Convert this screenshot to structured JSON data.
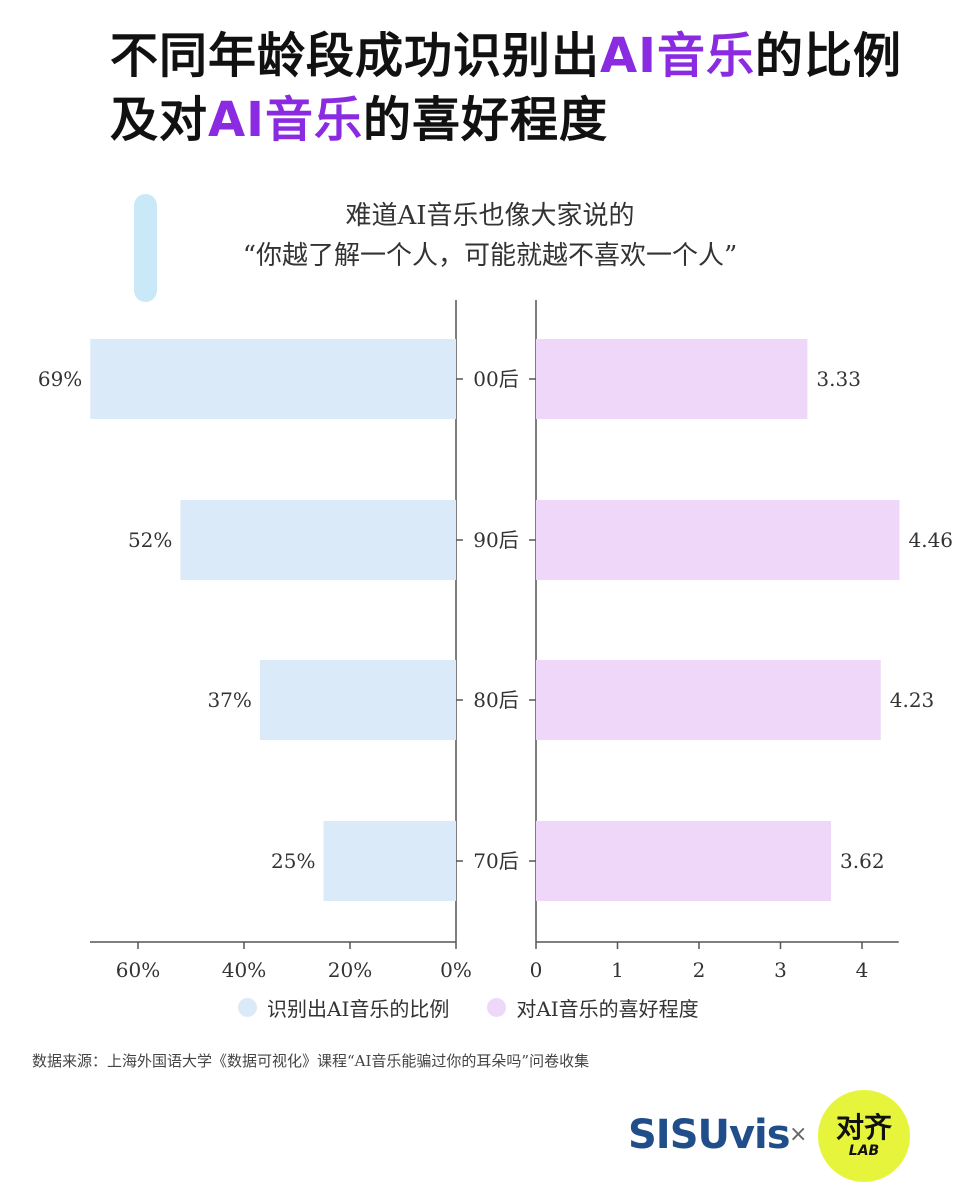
{
  "title": {
    "line1_pre": "不同年龄段成功识别出",
    "line1_hl": "AI音乐",
    "line1_post": "的比例",
    "line2_pre": "及对",
    "line2_hl": "AI音乐",
    "line2_post": "的喜好程度"
  },
  "subtitle": {
    "line1": "难道AI音乐也像大家说的",
    "line2": "“你越了解一个人，可能就越不喜欢一个人”"
  },
  "colors": {
    "left_bar": "#dbeaf9",
    "right_bar": "#efd7f9",
    "highlight": "#8a2be2"
  },
  "chart_data": {
    "type": "bar",
    "categories": [
      "00后",
      "90后",
      "80后",
      "70后"
    ],
    "series": [
      {
        "name": "识别出AI音乐的比例",
        "values": [
          69,
          52,
          37,
          25
        ],
        "labels": [
          "69%",
          "52%",
          "37%",
          "25%"
        ],
        "xlim": [
          0,
          70
        ],
        "ticks": [
          0,
          20,
          40,
          60
        ],
        "tick_labels": [
          "0%",
          "20%",
          "40%",
          "60%"
        ]
      },
      {
        "name": "对AI音乐的喜好程度",
        "values": [
          3.33,
          4.46,
          4.23,
          3.62
        ],
        "labels": [
          "3.33",
          "4.46",
          "4.23",
          "3.62"
        ],
        "xlim": [
          0,
          4.5
        ],
        "ticks": [
          0,
          1,
          2,
          3,
          4
        ],
        "tick_labels": [
          "0",
          "1",
          "2",
          "3",
          "4"
        ]
      }
    ]
  },
  "legend": {
    "left_label": "识别出AI音乐的比例",
    "right_label": "对AI音乐的喜好程度"
  },
  "source": "数据来源：上海外国语大学《数据可视化》课程“AI音乐能骗过你的耳朵吗”问卷收集",
  "logos": {
    "sisu": "SISUvis",
    "times": "×",
    "lab_cn": "对齐",
    "lab_en": "LAB"
  }
}
